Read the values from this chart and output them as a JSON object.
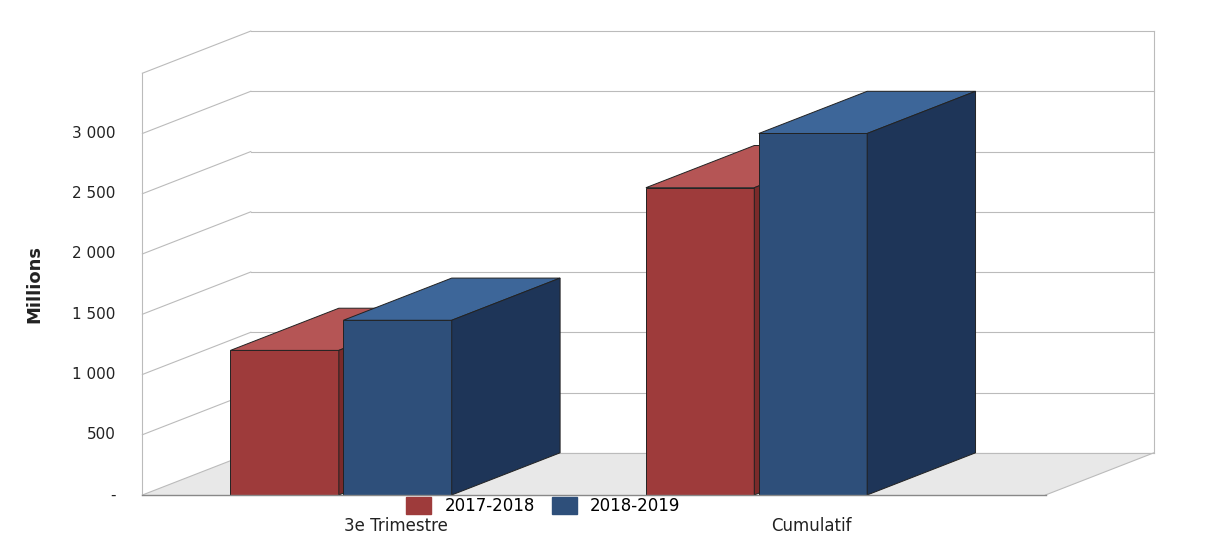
{
  "categories": [
    "3e Trimestre",
    "Cumulatif"
  ],
  "values_2017": [
    1200,
    2550
  ],
  "values_2018": [
    1450,
    3000
  ],
  "color_2017_face": "#9E3B3B",
  "color_2017_top": "#B55555",
  "color_2017_side": "#7A2A2A",
  "color_2018_face": "#2E4F7A",
  "color_2018_top": "#3D6699",
  "color_2018_side": "#1E3558",
  "ylabel": "Millions",
  "ylim_max": 3500,
  "yticks": [
    0,
    500,
    1000,
    1500,
    2000,
    2500,
    3000
  ],
  "ytick_labels": [
    "-",
    "500",
    "1 000",
    "1 500",
    "2 000",
    "2 500",
    "3 000"
  ],
  "legend_2017": "2017-2018",
  "legend_2018": "2018-2019",
  "background_color": "#ffffff",
  "grid_color": "#bbbbbb",
  "outline_color": "#222222"
}
